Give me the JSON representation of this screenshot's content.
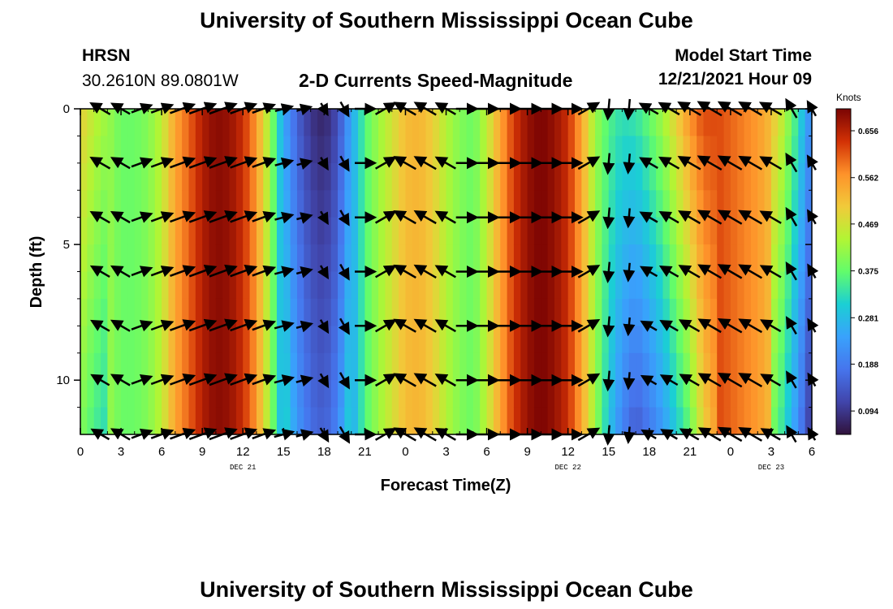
{
  "header": {
    "title": "University of Southern Mississippi Ocean Cube",
    "station": "HRSN",
    "coords": "30.2610N  89.0801W",
    "plot_title": "2-D Currents Speed-Magnitude",
    "model_start_label": "Model Start Time",
    "model_start_value": "12/21/2021 Hour 09"
  },
  "footer": {
    "title": "University of Southern Mississippi Ocean Cube"
  },
  "chart_data": {
    "type": "heatmap",
    "title": "2-D Currents Speed-Magnitude",
    "xlabel": "Forecast Time(Z)",
    "ylabel": "Depth (ft)",
    "xlim": [
      0,
      54
    ],
    "ylim": [
      0,
      12
    ],
    "x_ticks": [
      0,
      3,
      6,
      9,
      12,
      15,
      18,
      21,
      24,
      27,
      30,
      33,
      36,
      39,
      42,
      45,
      48,
      51,
      54
    ],
    "x_tick_labels": [
      "0",
      "3",
      "6",
      "9",
      "12",
      "15",
      "18",
      "21",
      "0",
      "3",
      "6",
      "9",
      "12",
      "15",
      "18",
      "21",
      "0",
      "3",
      "6"
    ],
    "y_ticks": [
      0,
      5,
      10
    ],
    "y_tick_labels": [
      "0",
      "5",
      "10"
    ],
    "date_labels": [
      {
        "label": "DEC 21",
        "x": 12
      },
      {
        "label": "DEC 22",
        "x": 36
      },
      {
        "label": "DEC 23",
        "x": 51
      }
    ],
    "colorbar": {
      "label": "Knots",
      "min": 0.047,
      "max": 0.7,
      "tick_values": [
        0.656,
        0.562,
        0.469,
        0.375,
        0.281,
        0.188,
        0.094
      ],
      "tick_labels": [
        "0.656",
        "0.562",
        "0.469",
        "0.375",
        "0.281",
        "0.188",
        "0.094"
      ]
    },
    "speed_knots_by_hour_at_surface": [
      [
        0,
        0.5
      ],
      [
        1,
        0.45
      ],
      [
        2,
        0.42
      ],
      [
        3,
        0.38
      ],
      [
        4,
        0.38
      ],
      [
        5,
        0.4
      ],
      [
        6,
        0.45
      ],
      [
        7,
        0.55
      ],
      [
        8,
        0.6
      ],
      [
        9,
        0.66
      ],
      [
        10,
        0.69
      ],
      [
        11,
        0.68
      ],
      [
        12,
        0.64
      ],
      [
        13,
        0.56
      ],
      [
        14,
        0.42
      ],
      [
        15,
        0.25
      ],
      [
        16,
        0.15
      ],
      [
        17,
        0.09
      ],
      [
        18,
        0.07
      ],
      [
        19,
        0.12
      ],
      [
        20,
        0.25
      ],
      [
        21,
        0.36
      ],
      [
        22,
        0.42
      ],
      [
        23,
        0.47
      ],
      [
        24,
        0.52
      ],
      [
        25,
        0.53
      ],
      [
        26,
        0.5
      ],
      [
        27,
        0.44
      ],
      [
        28,
        0.4
      ],
      [
        29,
        0.38
      ],
      [
        30,
        0.45
      ],
      [
        31,
        0.55
      ],
      [
        32,
        0.63
      ],
      [
        33,
        0.68
      ],
      [
        34,
        0.7
      ],
      [
        35,
        0.68
      ],
      [
        36,
        0.64
      ],
      [
        37,
        0.55
      ],
      [
        38,
        0.42
      ],
      [
        39,
        0.36
      ],
      [
        40,
        0.33
      ],
      [
        41,
        0.34
      ],
      [
        42,
        0.38
      ],
      [
        43,
        0.43
      ],
      [
        44,
        0.5
      ],
      [
        45,
        0.57
      ],
      [
        46,
        0.62
      ],
      [
        47,
        0.62
      ],
      [
        48,
        0.6
      ],
      [
        49,
        0.58
      ],
      [
        50,
        0.56
      ],
      [
        51,
        0.52
      ],
      [
        52,
        0.44
      ],
      [
        53,
        0.33
      ],
      [
        54,
        0.2
      ]
    ],
    "depth_adjustment_note": "speeds at depth follow same pattern; weak (blue) band hours 14-20 and hours 38-44 deepens",
    "vectors_note": "black arrows every 1.5 h at depths 0,2,4,6,8,10,12 ft show current direction"
  }
}
